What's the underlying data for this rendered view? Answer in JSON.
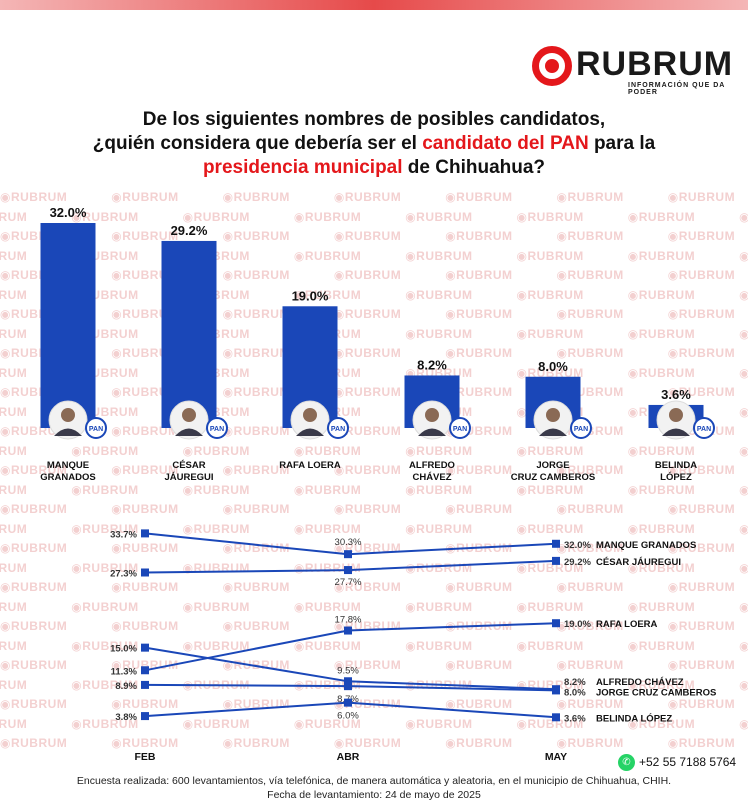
{
  "brand": {
    "name": "RUBRUM",
    "tagline": "INFORMACIÓN QUE DA PODER",
    "watermark": "RUBRUM",
    "red": "#e4171b"
  },
  "title": {
    "line1": "De los siguientes nombres de posibles candidatos,",
    "line2_pre": "¿quién considera que debería ser el ",
    "line2_red": "candidato del PAN",
    "line2_post": " para la",
    "line3_red": "presidencia municipal",
    "line3_post": " de Chihuahua?"
  },
  "chart_data": [
    {
      "type": "bar",
      "categories": [
        "MANQUE GRANADOS",
        "CÉSAR JÁUREGUI",
        "RAFA LOERA",
        "ALFREDO CHÁVEZ",
        "JORGE CRUZ CAMBEROS",
        "BELINDA LÓPEZ"
      ],
      "label_lines": [
        [
          "MANQUE",
          "GRANADOS"
        ],
        [
          "CÉSAR",
          "JÁUREGUI"
        ],
        [
          "RAFA LOERA"
        ],
        [
          "ALFREDO",
          "CHÁVEZ"
        ],
        [
          "JORGE",
          "CRUZ CAMBEROS"
        ],
        [
          "BELINDA",
          "LÓPEZ"
        ]
      ],
      "values": [
        32.0,
        29.2,
        19.0,
        8.2,
        8.0,
        3.6
      ],
      "value_labels": [
        "32.0%",
        "29.2%",
        "19.0%",
        "8.2%",
        "8.0%",
        "3.6%"
      ],
      "badge": "PAN",
      "color": "#1a47b8",
      "ylim": [
        0,
        32
      ]
    },
    {
      "type": "line",
      "x": [
        "FEB",
        "ABR",
        "MAY"
      ],
      "color": "#1a47b8",
      "series": [
        {
          "name": "MANQUE GRANADOS",
          "values": [
            33.7,
            30.3,
            32.0
          ],
          "labels": [
            "33.7%",
            "30.3%",
            "32.0%"
          ]
        },
        {
          "name": "CÉSAR JÁUREGUI",
          "values": [
            27.3,
            27.7,
            29.2
          ],
          "labels": [
            "27.3%",
            "27.7%",
            "29.2%"
          ]
        },
        {
          "name": "RAFA LOERA",
          "values": [
            11.3,
            17.8,
            19.0
          ],
          "labels": [
            "11.3%",
            "17.8%",
            "19.0%"
          ]
        },
        {
          "name": "ALFREDO CHÁVEZ",
          "values": [
            15.0,
            9.5,
            8.2
          ],
          "labels": [
            "15.0%",
            "9.5%",
            "8.2%"
          ]
        },
        {
          "name": "JORGE CRUZ CAMBEROS",
          "values": [
            8.9,
            8.7,
            8.0
          ],
          "labels": [
            "8.9%",
            "8.7%",
            "8.0%"
          ]
        },
        {
          "name": "BELINDA LÓPEZ",
          "values": [
            3.8,
            6.0,
            3.6
          ],
          "labels": [
            "3.8%",
            "6.0%",
            "3.6%"
          ]
        }
      ]
    }
  ],
  "contact": {
    "phone": "+52 55 7188 5764",
    "icon": "whatsapp-icon",
    "color": "#25d366"
  },
  "footer": {
    "line1": "Encuesta realizada: 600 levantamientos, vía telefónica, de manera automática y aleatoria, en el municipio de Chihuahua, CHIH.",
    "line2": "Fecha de levantamiento: 24 de mayo de 2025"
  }
}
